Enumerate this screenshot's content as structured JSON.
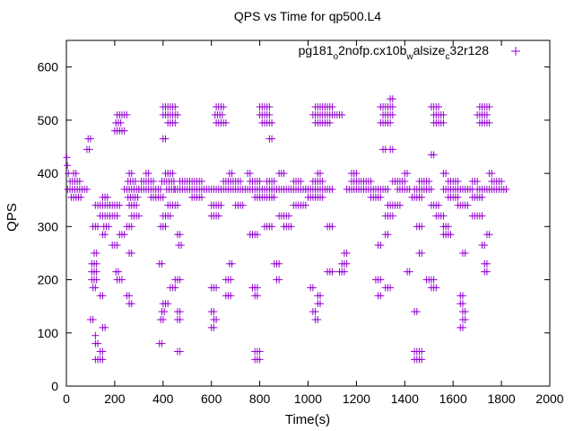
{
  "chart_data": {
    "type": "scatter",
    "title": "QPS vs Time for qp500.L4",
    "xlabel": "Time(s)",
    "ylabel": "QPS",
    "xlim": [
      0,
      2000
    ],
    "ylim": [
      0,
      650
    ],
    "x_ticks": [
      0,
      200,
      400,
      600,
      800,
      1000,
      1200,
      1400,
      1600,
      1800,
      2000
    ],
    "y_ticks": [
      0,
      100,
      200,
      300,
      400,
      500,
      600
    ],
    "grid": false,
    "legend_position": "top-right",
    "marker": "plus",
    "series": [
      {
        "name": "pg181_o2nofp.cx10b_walsize_c32r128",
        "legend_parts": [
          {
            "text": "pg181",
            "sub": false
          },
          {
            "text": "o",
            "sub": true
          },
          {
            "text": "2nofp.cx10b",
            "sub": false
          },
          {
            "text": "w",
            "sub": true
          },
          {
            "text": "alsize",
            "sub": false
          },
          {
            "text": "c",
            "sub": true
          },
          {
            "text": "32r128",
            "sub": false
          }
        ],
        "color": "#9400d3",
        "bands": [
          {
            "y": 430,
            "x": [
              [
                2,
                6
              ]
            ]
          },
          {
            "y": 415,
            "x": [
              [
                4,
                10
              ]
            ]
          },
          {
            "y": 400,
            "x": [
              [
                8,
                16
              ],
              [
                30,
                40
              ],
              [
                260,
                270
              ],
              [
                330,
                345
              ],
              [
                410,
                440
              ],
              [
                675,
                690
              ],
              [
                750,
                760
              ],
              [
                880,
                900
              ],
              [
                1040,
                1050
              ],
              [
                1180,
                1200
              ],
              [
                1400,
                1415
              ],
              [
                1560,
                1575
              ],
              [
                1750,
                1760
              ]
            ]
          },
          {
            "y": 385,
            "x": [
              [
                15,
                55
              ],
              [
                255,
                285
              ],
              [
                310,
                360
              ],
              [
                395,
                445
              ],
              [
                470,
                560
              ],
              [
                650,
                720
              ],
              [
                760,
                800
              ],
              [
                830,
                860
              ],
              [
                940,
                975
              ],
              [
                1020,
                1060
              ],
              [
                1180,
                1260
              ],
              [
                1350,
                1400
              ],
              [
                1460,
                1500
              ],
              [
                1580,
                1620
              ],
              [
                1680,
                1700
              ],
              [
                1760,
                1800
              ]
            ]
          },
          {
            "y": 370,
            "x": [
              [
                5,
                90
              ],
              [
                240,
                300
              ],
              [
                300,
                390
              ],
              [
                415,
                450
              ],
              [
                450,
                640
              ],
              [
                640,
                850
              ],
              [
                850,
                990
              ],
              [
                990,
                1100
              ],
              [
                1160,
                1330
              ],
              [
                1370,
                1420
              ],
              [
                1440,
                1510
              ],
              [
                1560,
                1680
              ],
              [
                1700,
                1820
              ]
            ]
          },
          {
            "y": 355,
            "x": [
              [
                20,
                60
              ],
              [
                150,
                170
              ],
              [
                255,
                300
              ],
              [
                350,
                400
              ],
              [
                520,
                560
              ],
              [
                780,
                860
              ],
              [
                1000,
                1060
              ],
              [
                1260,
                1300
              ],
              [
                1430,
                1470
              ],
              [
                1580,
                1620
              ],
              [
                1680,
                1720
              ]
            ]
          },
          {
            "y": 340,
            "x": [
              [
                120,
                220
              ],
              [
                260,
                290
              ],
              [
                420,
                460
              ],
              [
                600,
                640
              ],
              [
                700,
                730
              ],
              [
                940,
                990
              ],
              [
                1330,
                1380
              ],
              [
                1510,
                1540
              ],
              [
                1620,
                1660
              ]
            ]
          },
          {
            "y": 320,
            "x": [
              [
                140,
                215
              ],
              [
                270,
                300
              ],
              [
                400,
                430
              ],
              [
                600,
                630
              ],
              [
                880,
                920
              ],
              [
                1320,
                1350
              ],
              [
                1530,
                1560
              ],
              [
                1680,
                1720
              ]
            ]
          },
          {
            "y": 300,
            "x": [
              [
                110,
                130
              ],
              [
                155,
                175
              ],
              [
                250,
                275
              ],
              [
                390,
                410
              ],
              [
                820,
                850
              ],
              [
                900,
                930
              ],
              [
                1080,
                1100
              ],
              [
                1450,
                1470
              ],
              [
                1560,
                1580
              ]
            ]
          },
          {
            "y": 285,
            "x": [
              [
                150,
                165
              ],
              [
                220,
                240
              ],
              [
                460,
                470
              ],
              [
                760,
                790
              ],
              [
                1320,
                1330
              ],
              [
                1560,
                1590
              ],
              [
                1740,
                1750
              ]
            ]
          },
          {
            "y": 265,
            "x": [
              [
                190,
                210
              ],
              [
                465,
                475
              ],
              [
                1290,
                1300
              ],
              [
                1720,
                1730
              ]
            ]
          },
          {
            "y": 250,
            "x": [
              [
                115,
                125
              ],
              [
                260,
                270
              ],
              [
                1150,
                1160
              ],
              [
                1460,
                1470
              ],
              [
                1640,
                1650
              ]
            ]
          },
          {
            "y": 230,
            "x": [
              [
                105,
                125
              ],
              [
                385,
                395
              ],
              [
                675,
                685
              ],
              [
                860,
                880
              ],
              [
                1140,
                1160
              ],
              [
                1730,
                1745
              ]
            ]
          },
          {
            "y": 215,
            "x": [
              [
                105,
                125
              ],
              [
                205,
                215
              ],
              [
                1080,
                1100
              ],
              [
                1130,
                1150
              ],
              [
                1410,
                1420
              ],
              [
                1730,
                1745
              ]
            ]
          },
          {
            "y": 200,
            "x": [
              [
                105,
                125
              ],
              [
                210,
                230
              ],
              [
                450,
                470
              ],
              [
                660,
                680
              ],
              [
                870,
                880
              ],
              [
                1280,
                1300
              ],
              [
                1490,
                1520
              ]
            ]
          },
          {
            "y": 185,
            "x": [
              [
                110,
                125
              ],
              [
                430,
                450
              ],
              [
                600,
                620
              ],
              [
                770,
                790
              ],
              [
                1010,
                1020
              ],
              [
                1320,
                1340
              ],
              [
                1510,
                1530
              ]
            ]
          },
          {
            "y": 170,
            "x": [
              [
                140,
                150
              ],
              [
                250,
                260
              ],
              [
                660,
                680
              ],
              [
                780,
                790
              ],
              [
                1040,
                1050
              ],
              [
                1290,
                1300
              ],
              [
                1630,
                1640
              ]
            ]
          },
          {
            "y": 155,
            "x": [
              [
                260,
                270
              ],
              [
                400,
                420
              ],
              [
                1040,
                1050
              ],
              [
                1630,
                1640
              ]
            ]
          },
          {
            "y": 140,
            "x": [
              [
                395,
                405
              ],
              [
                460,
                470
              ],
              [
                600,
                610
              ],
              [
                1020,
                1030
              ],
              [
                1440,
                1450
              ],
              [
                1640,
                1650
              ]
            ]
          },
          {
            "y": 125,
            "x": [
              [
                100,
                110
              ],
              [
                390,
                400
              ],
              [
                460,
                470
              ],
              [
                610,
                620
              ],
              [
                1030,
                1040
              ],
              [
                1640,
                1650
              ]
            ]
          },
          {
            "y": 110,
            "x": [
              [
                150,
                160
              ],
              [
                600,
                610
              ],
              [
                1630,
                1640
              ]
            ]
          },
          {
            "y": 95,
            "x": [
              [
                120,
                125
              ]
            ]
          },
          {
            "y": 80,
            "x": [
              [
                120,
                130
              ],
              [
                385,
                395
              ]
            ]
          },
          {
            "y": 65,
            "x": [
              [
                140,
                150
              ],
              [
                460,
                470
              ],
              [
                780,
                800
              ],
              [
                1440,
                1470
              ]
            ]
          },
          {
            "y": 50,
            "x": [
              [
                120,
                150
              ],
              [
                780,
                800
              ],
              [
                1440,
                1470
              ]
            ]
          },
          {
            "y": 495,
            "x": [
              [
                205,
                230
              ],
              [
                420,
                450
              ],
              [
                620,
                660
              ],
              [
                810,
                850
              ],
              [
                1030,
                1090
              ],
              [
                1300,
                1340
              ],
              [
                1520,
                1560
              ],
              [
                1710,
                1750
              ]
            ]
          },
          {
            "y": 510,
            "x": [
              [
                210,
                250
              ],
              [
                400,
                460
              ],
              [
                615,
                650
              ],
              [
                800,
                840
              ],
              [
                1020,
                1140
              ],
              [
                1310,
                1350
              ],
              [
                1520,
                1560
              ],
              [
                1700,
                1740
              ]
            ]
          },
          {
            "y": 525,
            "x": [
              [
                400,
                450
              ],
              [
                620,
                650
              ],
              [
                800,
                840
              ],
              [
                1030,
                1100
              ],
              [
                1300,
                1350
              ],
              [
                1510,
                1540
              ],
              [
                1710,
                1750
              ]
            ]
          },
          {
            "y": 480,
            "x": [
              [
                200,
                240
              ]
            ]
          },
          {
            "y": 465,
            "x": [
              [
                90,
                100
              ],
              [
                400,
                410
              ],
              [
                840,
                850
              ]
            ]
          },
          {
            "y": 445,
            "x": [
              [
                85,
                100
              ],
              [
                1310,
                1320
              ],
              [
                1340,
                1350
              ]
            ]
          },
          {
            "y": 540,
            "x": [
              [
                1340,
                1350
              ]
            ]
          },
          {
            "y": 435,
            "x": [
              [
                1510,
                1520
              ]
            ]
          }
        ]
      }
    ]
  }
}
